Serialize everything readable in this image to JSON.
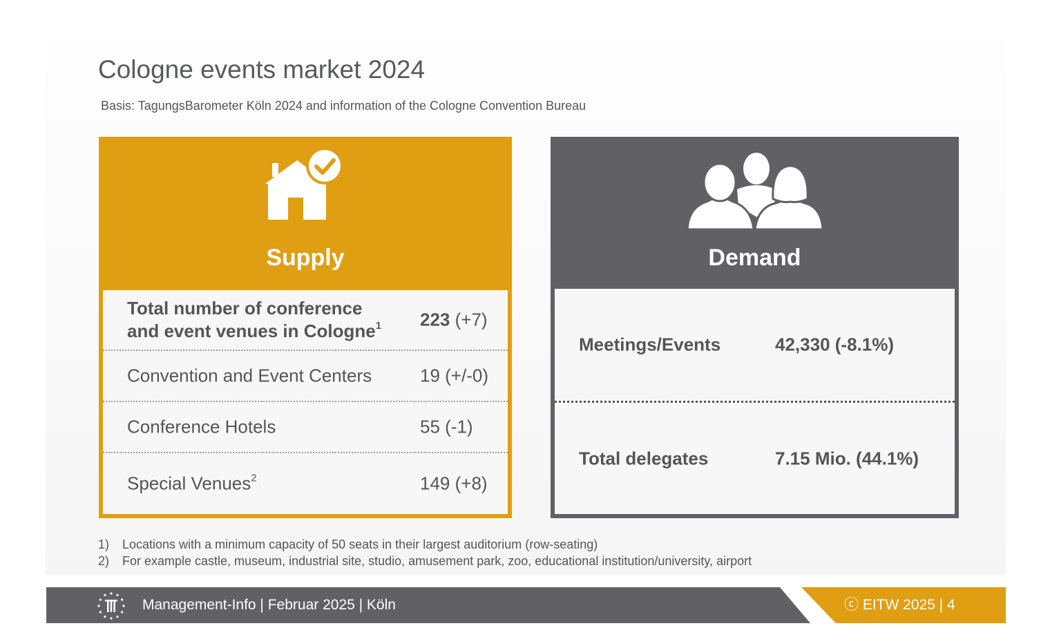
{
  "header": {
    "title": "Cologne events market 2024",
    "subtitle": "Basis: TagungsBarometer Köln 2024 and information of the Cologne Convention Bureau"
  },
  "supply": {
    "title": "Supply",
    "icon": "house-check-icon",
    "color": "#e09e13",
    "rows": [
      {
        "label_line1": "Total number of conference",
        "label_line2": "and event venues in Cologne",
        "sup": "1",
        "value": "223",
        "change": "(+7)"
      },
      {
        "label": "Convention and Event Centers",
        "value": "19 (+/-0)"
      },
      {
        "label": "Conference Hotels",
        "value": "55 (-1)"
      },
      {
        "label": "Special Venues",
        "sup": "2",
        "value": "149 (+8)"
      }
    ]
  },
  "demand": {
    "title": "Demand",
    "icon": "people-group-icon",
    "color": "#616165",
    "rows": [
      {
        "label": "Meetings/Events",
        "value": "42,330 (-8.1%)"
      },
      {
        "label": "Total delegates",
        "value": "7.15 Mio. (44.1%)"
      }
    ]
  },
  "footnotes": [
    {
      "num": "1)",
      "text": "Locations with a minimum capacity of 50 seats in their largest auditorium (row-seating)"
    },
    {
      "num": "2)",
      "text": "For example castle, museum, industrial site, studio, amusement park, zoo, educational institution/university, airport"
    }
  ],
  "footer": {
    "text": "Management-Info | Februar 2025 | Köln",
    "copyright": "ⓒ EITW 2025  |  4",
    "logo_icon": "eitw-logo-icon"
  }
}
